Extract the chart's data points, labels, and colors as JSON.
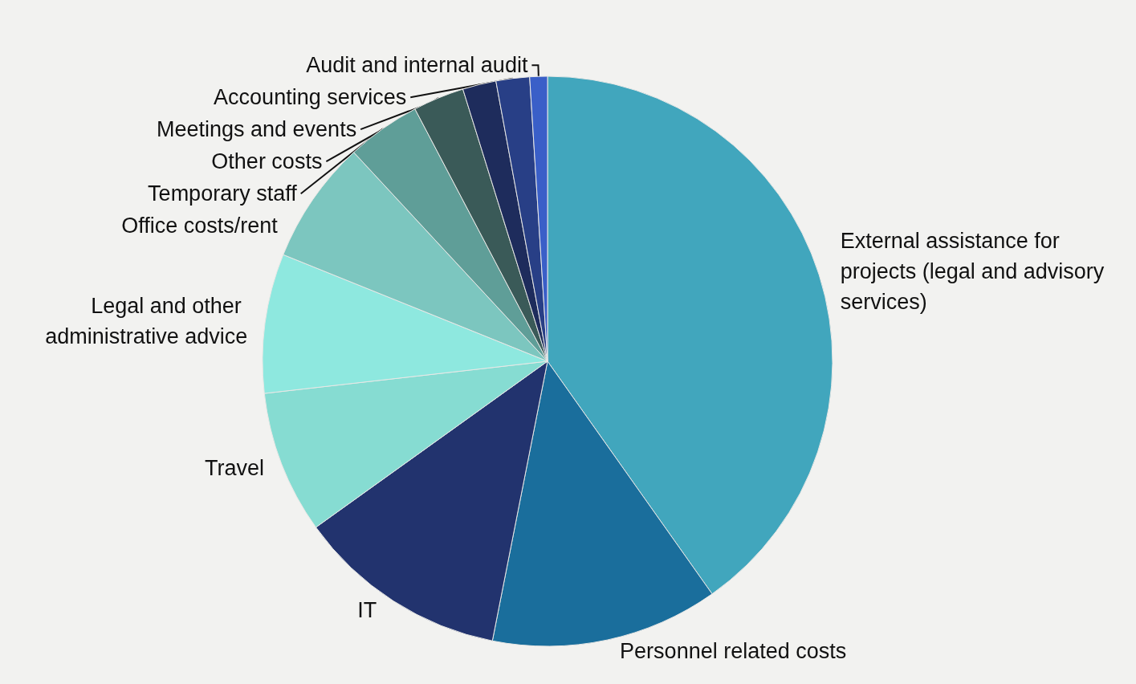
{
  "chart_data": {
    "type": "pie",
    "categories": [
      "External assistance for projects (legal and advisory services)",
      "Personnel related costs",
      "IT",
      "Travel",
      "Legal and other administrative advice",
      "Office costs/rent",
      "Temporary staff",
      "Other costs",
      "Meetings and events",
      "Accounting services",
      "Audit and internal audit"
    ],
    "values": [
      40.2,
      12.9,
      12.0,
      8.1,
      7.9,
      7.0,
      4.2,
      2.9,
      1.9,
      1.9,
      1.0
    ],
    "colors": [
      "#41a6bd",
      "#1a6e9c",
      "#22336e",
      "#86dcd2",
      "#8ee8df",
      "#7cc6bf",
      "#5f9e98",
      "#3a5a58",
      "#1e2c5c",
      "#283f86",
      "#3a5fc8"
    ],
    "legend": false
  }
}
